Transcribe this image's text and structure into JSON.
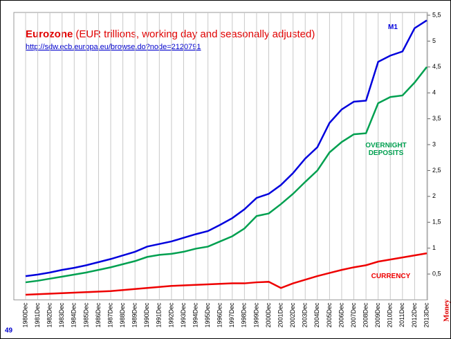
{
  "chart_data": {
    "type": "line",
    "title": "Eurozone",
    "subtitle": "(EUR trillions, working day and seasonally adjusted)",
    "source": "http://sdw.ecb.europa.eu/browse.do?node=2120791",
    "page_number": "49",
    "side_label": "Money",
    "categories": [
      "1980Dec",
      "1981Dec",
      "1982Dec",
      "1983Dec",
      "1984Dec",
      "1985Dec",
      "1986Dec",
      "1987Dec",
      "1988Dec",
      "1989Dec",
      "1990Dec",
      "1991Dec",
      "1992Dec",
      "1993Dec",
      "1994Dec",
      "1995Dec",
      "1996Dec",
      "1997Dec",
      "1998Dec",
      "1999Dec",
      "2000Dec",
      "2001Dec",
      "2002Dec",
      "2003Dec",
      "2004Dec",
      "2005Dec",
      "2006Dec",
      "2007Dec",
      "2008Dec",
      "2009Dec",
      "2010Dec",
      "2011Dec",
      "2012Dec",
      "2013Dec"
    ],
    "series": [
      {
        "name": "M1",
        "color": "#0000dd",
        "values": [
          0.46,
          0.49,
          0.53,
          0.58,
          0.62,
          0.67,
          0.73,
          0.79,
          0.86,
          0.93,
          1.03,
          1.08,
          1.13,
          1.2,
          1.27,
          1.33,
          1.45,
          1.58,
          1.75,
          1.97,
          2.05,
          2.22,
          2.45,
          2.73,
          2.95,
          3.42,
          3.68,
          3.83,
          3.85,
          4.6,
          4.72,
          4.8,
          5.25,
          5.4
        ]
      },
      {
        "name": "OVERNIGHT DEPOSITS",
        "color": "#00a050",
        "values": [
          0.34,
          0.37,
          0.41,
          0.45,
          0.49,
          0.53,
          0.58,
          0.63,
          0.69,
          0.75,
          0.83,
          0.87,
          0.89,
          0.93,
          0.99,
          1.03,
          1.13,
          1.23,
          1.38,
          1.62,
          1.67,
          1.85,
          2.05,
          2.28,
          2.5,
          2.85,
          3.05,
          3.2,
          3.22,
          3.8,
          3.92,
          3.95,
          4.2,
          4.5
        ]
      },
      {
        "name": "CURRENCY",
        "color": "#ee0000",
        "values": [
          0.1,
          0.11,
          0.12,
          0.13,
          0.14,
          0.15,
          0.16,
          0.17,
          0.19,
          0.21,
          0.23,
          0.25,
          0.27,
          0.28,
          0.29,
          0.3,
          0.31,
          0.32,
          0.32,
          0.34,
          0.35,
          0.23,
          0.32,
          0.39,
          0.46,
          0.52,
          0.58,
          0.63,
          0.67,
          0.74,
          0.78,
          0.82,
          0.86,
          0.9
        ]
      }
    ],
    "ylim": [
      0,
      5.5
    ],
    "yticks": [
      {
        "value": 0.5,
        "label": "0,5"
      },
      1,
      {
        "value": 1.5,
        "label": "1,5"
      },
      2,
      {
        "value": 2.5,
        "label": "2,5"
      },
      3,
      {
        "value": 3.5,
        "label": "3,5"
      },
      4,
      {
        "value": 4.5,
        "label": "4,5"
      },
      5,
      {
        "value": 5.5,
        "label": "5,5"
      }
    ],
    "x_grid": true
  }
}
